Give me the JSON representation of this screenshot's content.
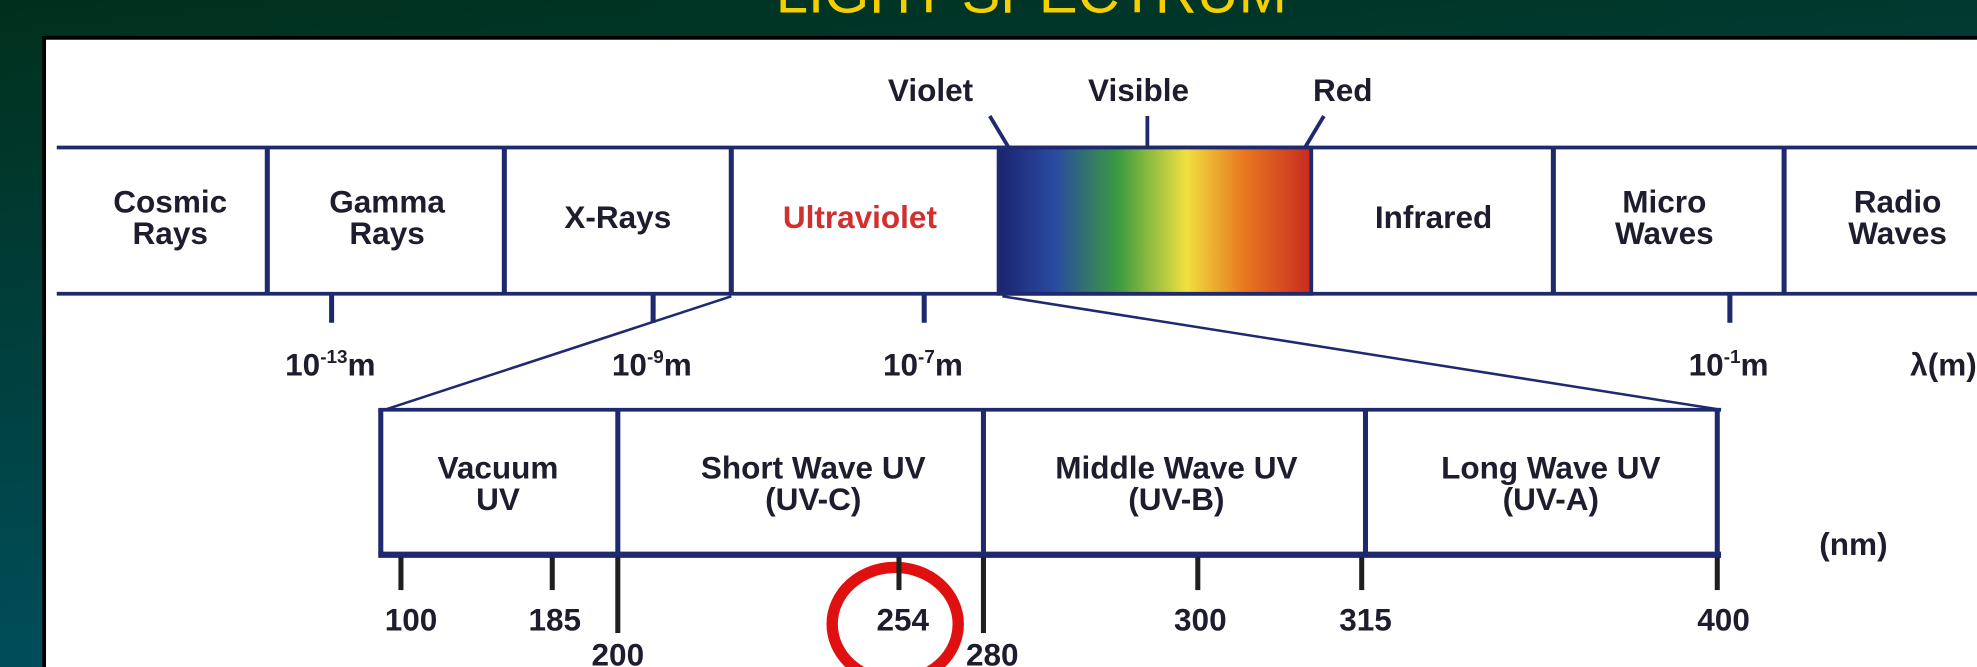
{
  "title": "LIGHT SPECTRUM",
  "top_labels": [
    "Violet",
    "Visible",
    "Red"
  ],
  "bands": [
    [
      "Cosmic",
      "Rays"
    ],
    [
      "Gamma",
      "Rays"
    ],
    [
      "X-Rays"
    ],
    [
      "Ultraviolet"
    ],
    [
      "Infrared"
    ],
    [
      "Micro",
      "Waves"
    ],
    [
      "Radio",
      "Waves"
    ]
  ],
  "scale": [
    {
      "base": "10",
      "exp": "-13",
      "unit": "m"
    },
    {
      "base": "10",
      "exp": "-9",
      "unit": "m"
    },
    {
      "base": "10",
      "exp": "-7",
      "unit": "m"
    },
    {
      "base": "10",
      "exp": "-1",
      "unit": "m"
    }
  ],
  "scale_unit": "λ(m)",
  "uv_bands": [
    [
      "Vacuum",
      "UV"
    ],
    [
      "Short Wave UV",
      "(UV-C)"
    ],
    [
      "Middle Wave UV",
      "(UV-B)"
    ],
    [
      "Long Wave UV",
      "(UV-A)"
    ]
  ],
  "uv_unit": "(nm)",
  "uv_ticks": [
    100,
    185,
    200,
    254,
    280,
    300,
    315,
    400
  ]
}
